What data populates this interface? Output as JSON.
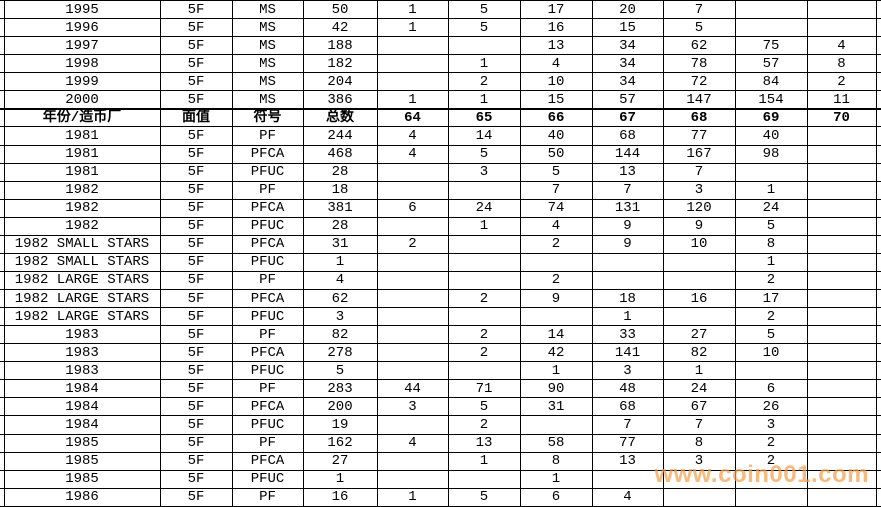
{
  "page": {
    "background": "#ffffff"
  },
  "watermark": {
    "text": "www.coin001.com",
    "color": "rgba(246, 158, 74, 0.72)"
  },
  "table": {
    "border_color": "#000000",
    "columns": [
      "年份/造币厂",
      "面值",
      "符号",
      "总数",
      "64",
      "65",
      "66",
      "67",
      "68",
      "69",
      "70"
    ],
    "rows": [
      {
        "kind": "data",
        "cells": [
          "1995",
          "5F",
          "MS",
          "50",
          "1",
          "5",
          "17",
          "20",
          "7",
          "",
          ""
        ]
      },
      {
        "kind": "data",
        "cells": [
          "1996",
          "5F",
          "MS",
          "42",
          "1",
          "5",
          "16",
          "15",
          "5",
          "",
          ""
        ]
      },
      {
        "kind": "data",
        "cells": [
          "1997",
          "5F",
          "MS",
          "188",
          "",
          "",
          "13",
          "34",
          "62",
          "75",
          "4"
        ]
      },
      {
        "kind": "data",
        "cells": [
          "1998",
          "5F",
          "MS",
          "182",
          "",
          "1",
          "4",
          "34",
          "78",
          "57",
          "8"
        ]
      },
      {
        "kind": "data",
        "cells": [
          "1999",
          "5F",
          "MS",
          "204",
          "",
          "2",
          "10",
          "34",
          "72",
          "84",
          "2"
        ]
      },
      {
        "kind": "data",
        "cells": [
          "2000",
          "5F",
          "MS",
          "386",
          "1",
          "1",
          "15",
          "57",
          "147",
          "154",
          "11"
        ]
      },
      {
        "kind": "header",
        "cells": [
          "年份/造币厂",
          "面值",
          "符号",
          "总数",
          "64",
          "65",
          "66",
          "67",
          "68",
          "69",
          "70"
        ]
      },
      {
        "kind": "data",
        "cells": [
          "1981",
          "5F",
          "PF",
          "244",
          "4",
          "14",
          "40",
          "68",
          "77",
          "40",
          ""
        ]
      },
      {
        "kind": "data",
        "cells": [
          "1981",
          "5F",
          "PFCA",
          "468",
          "4",
          "5",
          "50",
          "144",
          "167",
          "98",
          ""
        ]
      },
      {
        "kind": "data",
        "cells": [
          "1981",
          "5F",
          "PFUC",
          "28",
          "",
          "3",
          "5",
          "13",
          "7",
          "",
          ""
        ]
      },
      {
        "kind": "data",
        "cells": [
          "1982",
          "5F",
          "PF",
          "18",
          "",
          "",
          "7",
          "7",
          "3",
          "1",
          ""
        ]
      },
      {
        "kind": "data",
        "cells": [
          "1982",
          "5F",
          "PFCA",
          "381",
          "6",
          "24",
          "74",
          "131",
          "120",
          "24",
          ""
        ]
      },
      {
        "kind": "data",
        "cells": [
          "1982",
          "5F",
          "PFUC",
          "28",
          "",
          "1",
          "4",
          "9",
          "9",
          "5",
          ""
        ]
      },
      {
        "kind": "data",
        "cells": [
          "1982 SMALL STARS",
          "5F",
          "PFCA",
          "31",
          "2",
          "",
          "2",
          "9",
          "10",
          "8",
          ""
        ]
      },
      {
        "kind": "data",
        "cells": [
          "1982 SMALL STARS",
          "5F",
          "PFUC",
          "1",
          "",
          "",
          "",
          "",
          "",
          "1",
          ""
        ]
      },
      {
        "kind": "data",
        "cells": [
          "1982 LARGE STARS",
          "5F",
          "PF",
          "4",
          "",
          "",
          "2",
          "",
          "",
          "2",
          ""
        ]
      },
      {
        "kind": "data",
        "cells": [
          "1982 LARGE STARS",
          "5F",
          "PFCA",
          "62",
          "",
          "2",
          "9",
          "18",
          "16",
          "17",
          ""
        ]
      },
      {
        "kind": "data",
        "cells": [
          "1982 LARGE STARS",
          "5F",
          "PFUC",
          "3",
          "",
          "",
          "",
          "1",
          "",
          "2",
          ""
        ]
      },
      {
        "kind": "data",
        "cells": [
          "1983",
          "5F",
          "PF",
          "82",
          "",
          "2",
          "14",
          "33",
          "27",
          "5",
          ""
        ]
      },
      {
        "kind": "data",
        "cells": [
          "1983",
          "5F",
          "PFCA",
          "278",
          "",
          "2",
          "42",
          "141",
          "82",
          "10",
          ""
        ]
      },
      {
        "kind": "data",
        "cells": [
          "1983",
          "5F",
          "PFUC",
          "5",
          "",
          "",
          "1",
          "3",
          "1",
          "",
          ""
        ]
      },
      {
        "kind": "data",
        "cells": [
          "1984",
          "5F",
          "PF",
          "283",
          "44",
          "71",
          "90",
          "48",
          "24",
          "6",
          ""
        ]
      },
      {
        "kind": "data",
        "cells": [
          "1984",
          "5F",
          "PFCA",
          "200",
          "3",
          "5",
          "31",
          "68",
          "67",
          "26",
          ""
        ]
      },
      {
        "kind": "data",
        "cells": [
          "1984",
          "5F",
          "PFUC",
          "19",
          "",
          "2",
          "",
          "7",
          "7",
          "3",
          ""
        ]
      },
      {
        "kind": "data",
        "cells": [
          "1985",
          "5F",
          "PF",
          "162",
          "4",
          "13",
          "58",
          "77",
          "8",
          "2",
          ""
        ]
      },
      {
        "kind": "data",
        "cells": [
          "1985",
          "5F",
          "PFCA",
          "27",
          "",
          "1",
          "8",
          "13",
          "3",
          "2",
          ""
        ]
      },
      {
        "kind": "data",
        "cells": [
          "1985",
          "5F",
          "PFUC",
          "1",
          "",
          "",
          "1",
          "",
          "",
          "",
          ""
        ]
      },
      {
        "kind": "data",
        "cells": [
          "1986",
          "5F",
          "PF",
          "16",
          "1",
          "5",
          "6",
          "4",
          "",
          "",
          ""
        ]
      }
    ]
  }
}
